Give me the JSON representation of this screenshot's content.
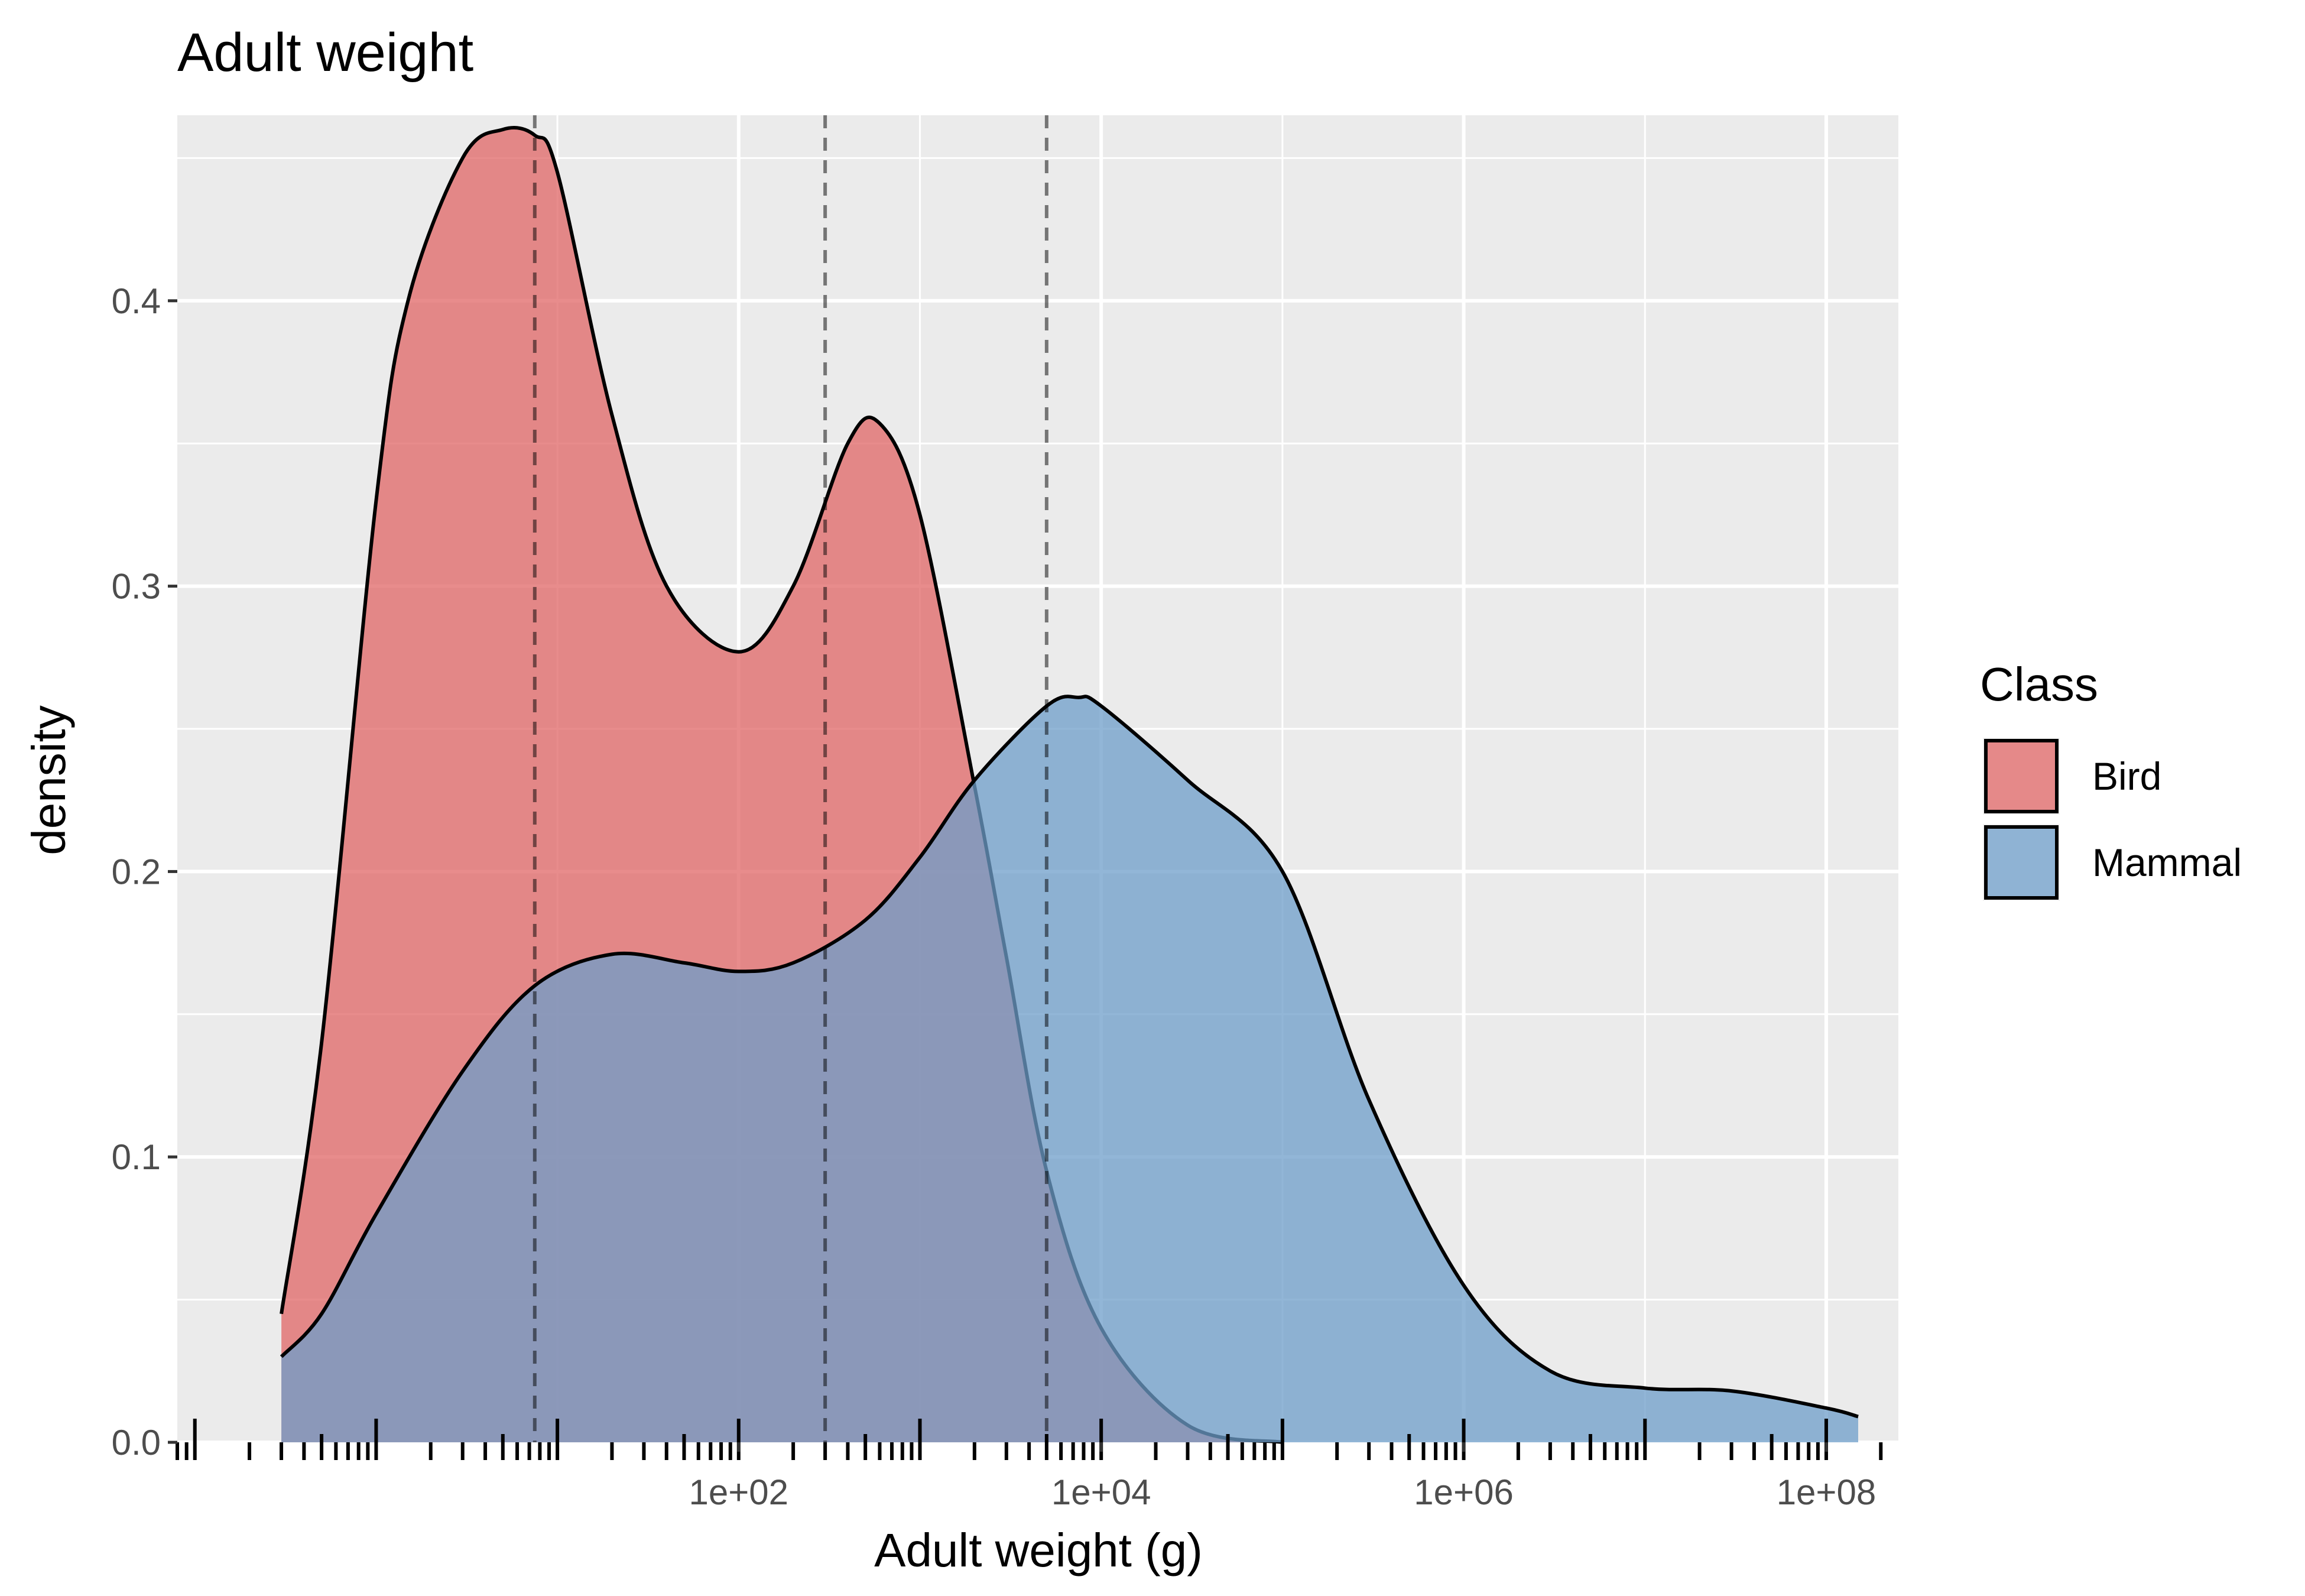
{
  "chart_data": {
    "type": "area",
    "title": "Adult weight",
    "xlabel": "Adult weight (g)",
    "ylabel": "density",
    "x_scale": "log10",
    "xlim": [
      0.08,
      250000000
    ],
    "ylim": [
      0,
      0.465
    ],
    "x_ticks": [
      100,
      10000,
      1000000,
      100000000
    ],
    "x_tick_labels": [
      "1e+02",
      "1e+04",
      "1e+06",
      "1e+08"
    ],
    "y_ticks": [
      0.0,
      0.1,
      0.2,
      0.3,
      0.4
    ],
    "y_tick_labels": [
      "0.0",
      "0.1",
      "0.2",
      "0.3",
      "0.4"
    ],
    "grid": true,
    "legend": {
      "title": "Class",
      "position": "right",
      "entries": [
        {
          "label": "Bird",
          "color": "#e06666"
        },
        {
          "label": "Mammal",
          "color": "#6e9ec9"
        }
      ]
    },
    "vlines": [
      7.5,
      300,
      5000
    ],
    "series": [
      {
        "name": "Bird",
        "color": "#e06666",
        "x": [
          0.3,
          0.5,
          1,
          1.5,
          3,
          5,
          7.5,
          10,
          20,
          40,
          100,
          200,
          400,
          600,
          1000,
          2000,
          3000,
          5000,
          10000,
          30000,
          100000
        ],
        "y": [
          0.045,
          0.14,
          0.33,
          0.4,
          0.45,
          0.46,
          0.458,
          0.445,
          0.36,
          0.3,
          0.277,
          0.3,
          0.35,
          0.357,
          0.325,
          0.23,
          0.17,
          0.095,
          0.04,
          0.006,
          0.0
        ]
      },
      {
        "name": "Mammal",
        "color": "#6e9ec9",
        "x": [
          0.3,
          0.5,
          1,
          3,
          7.5,
          20,
          50,
          100,
          200,
          500,
          1000,
          2000,
          5000,
          7500,
          10000,
          30000,
          100000,
          300000,
          1000000,
          3000000,
          10000000,
          30000000,
          100000000,
          150000000
        ],
        "y": [
          0.03,
          0.045,
          0.08,
          0.13,
          0.16,
          0.171,
          0.168,
          0.165,
          0.168,
          0.183,
          0.205,
          0.232,
          0.258,
          0.261,
          0.258,
          0.232,
          0.2,
          0.12,
          0.055,
          0.025,
          0.019,
          0.018,
          0.012,
          0.009
        ]
      }
    ]
  }
}
